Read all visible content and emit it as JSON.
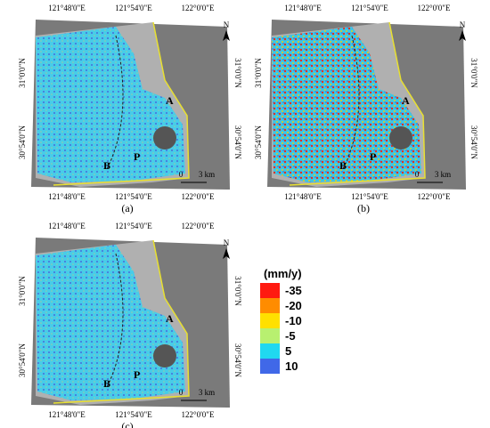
{
  "panels": [
    {
      "label": "(a)",
      "lon_labels": [
        "121°48'0\"E",
        "121°54'0\"E",
        "122°0'0\"E"
      ],
      "lat_labels": [
        "31°0'0\"N",
        "30°54'0\"N"
      ],
      "markers": [
        "A",
        "B",
        "P"
      ],
      "scale": [
        "0",
        "3 km"
      ],
      "north": "N"
    },
    {
      "label": "(b)",
      "lon_labels": [
        "121°48'0\"E",
        "121°54'0\"E",
        "122°0'0\"E"
      ],
      "lat_labels": [
        "31°0'0\"N",
        "30°54'0\"N"
      ],
      "markers": [
        "A",
        "B",
        "P"
      ],
      "scale": [
        "0",
        "3 km"
      ],
      "north": "N"
    },
    {
      "label": "(c)",
      "lon_labels": [
        "121°48'0\"E",
        "121°54'0\"E",
        "122°0'0\"E"
      ],
      "lat_labels": [
        "31°0'0\"N",
        "30°54'0\"N"
      ],
      "markers": [
        "A",
        "B",
        "P"
      ],
      "scale": [
        "0",
        "3 km"
      ],
      "north": "N"
    }
  ],
  "legend": {
    "title": "(mm/y)",
    "items": [
      {
        "label": "-35",
        "color": "#ff1a10"
      },
      {
        "label": "-20",
        "color": "#ff8c00"
      },
      {
        "label": "-10",
        "color": "#ffe000"
      },
      {
        "label": "-5",
        "color": "#b8f070"
      },
      {
        "label": "5",
        "color": "#20d8f0"
      },
      {
        "label": "10",
        "color": "#4068e8"
      }
    ]
  }
}
